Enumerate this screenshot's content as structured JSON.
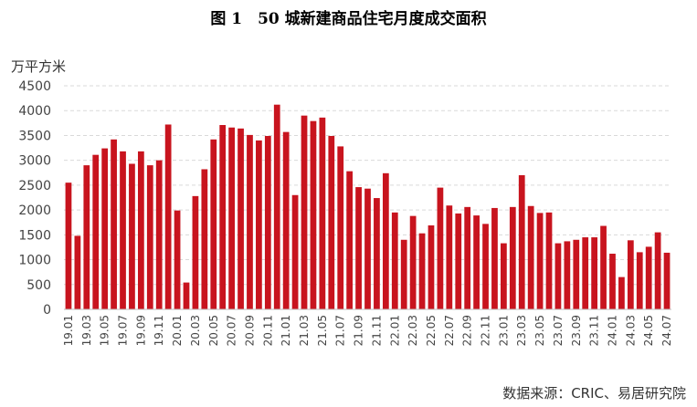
{
  "chart_data": {
    "type": "bar",
    "title": "图 1　50 城新建商品住宅月度成交面积",
    "ylabel": "万平方米",
    "source": "数据来源：CRIC、易居研究院",
    "ylim": [
      0,
      4500
    ],
    "yticks": [
      0,
      500,
      1000,
      1500,
      2000,
      2500,
      3000,
      3500,
      4000,
      4500
    ],
    "bar_color": "#C8141E",
    "grid_color": "#D9D9D9",
    "categories": [
      "19.01",
      "19.02",
      "19.03",
      "19.04",
      "19.05",
      "19.06",
      "19.07",
      "19.08",
      "19.09",
      "19.10",
      "19.11",
      "19.12",
      "20.01",
      "20.02",
      "20.03",
      "20.04",
      "20.05",
      "20.06",
      "20.07",
      "20.08",
      "20.09",
      "20.10",
      "20.11",
      "20.12",
      "21.01",
      "21.02",
      "21.03",
      "21.04",
      "21.05",
      "21.06",
      "21.07",
      "21.08",
      "21.09",
      "21.10",
      "21.11",
      "21.12",
      "22.01",
      "22.02",
      "22.03",
      "22.04",
      "22.05",
      "22.06",
      "22.07",
      "22.08",
      "22.09",
      "22.10",
      "22.11",
      "22.12",
      "23.01",
      "23.02",
      "23.03",
      "23.04",
      "23.05",
      "23.06",
      "23.07",
      "23.08",
      "23.09",
      "23.10",
      "23.11",
      "23.12",
      "24.01",
      "24.02",
      "24.03",
      "24.04",
      "24.05",
      "24.06",
      "24.07"
    ],
    "x_tick_labels": [
      "19.01",
      "19.03",
      "19.05",
      "19.07",
      "19.09",
      "19.11",
      "20.01",
      "20.03",
      "20.05",
      "20.07",
      "20.09",
      "20.11",
      "21.01",
      "21.03",
      "21.05",
      "21.07",
      "21.09",
      "21.11",
      "22.01",
      "22.03",
      "22.05",
      "22.07",
      "22.09",
      "22.11",
      "23.01",
      "23.03",
      "23.05",
      "23.07",
      "23.09",
      "23.11",
      "24.01",
      "24.03",
      "24.05",
      "24.07"
    ],
    "values": [
      2550,
      1480,
      2900,
      3110,
      3240,
      3420,
      3180,
      2930,
      3180,
      2900,
      3000,
      3720,
      1990,
      540,
      2280,
      2820,
      3420,
      3710,
      3660,
      3640,
      3510,
      3400,
      3490,
      4120,
      3570,
      2300,
      3900,
      3790,
      3860,
      3490,
      3280,
      2780,
      2460,
      2430,
      2240,
      2740,
      1950,
      1400,
      1880,
      1530,
      1690,
      2450,
      2090,
      1930,
      2060,
      1890,
      1720,
      2040,
      1330,
      2060,
      2700,
      2080,
      1940,
      1950,
      1330,
      1370,
      1400,
      1450,
      1450,
      1680,
      1120,
      650,
      1390,
      1150,
      1260,
      1550,
      1140
    ]
  }
}
